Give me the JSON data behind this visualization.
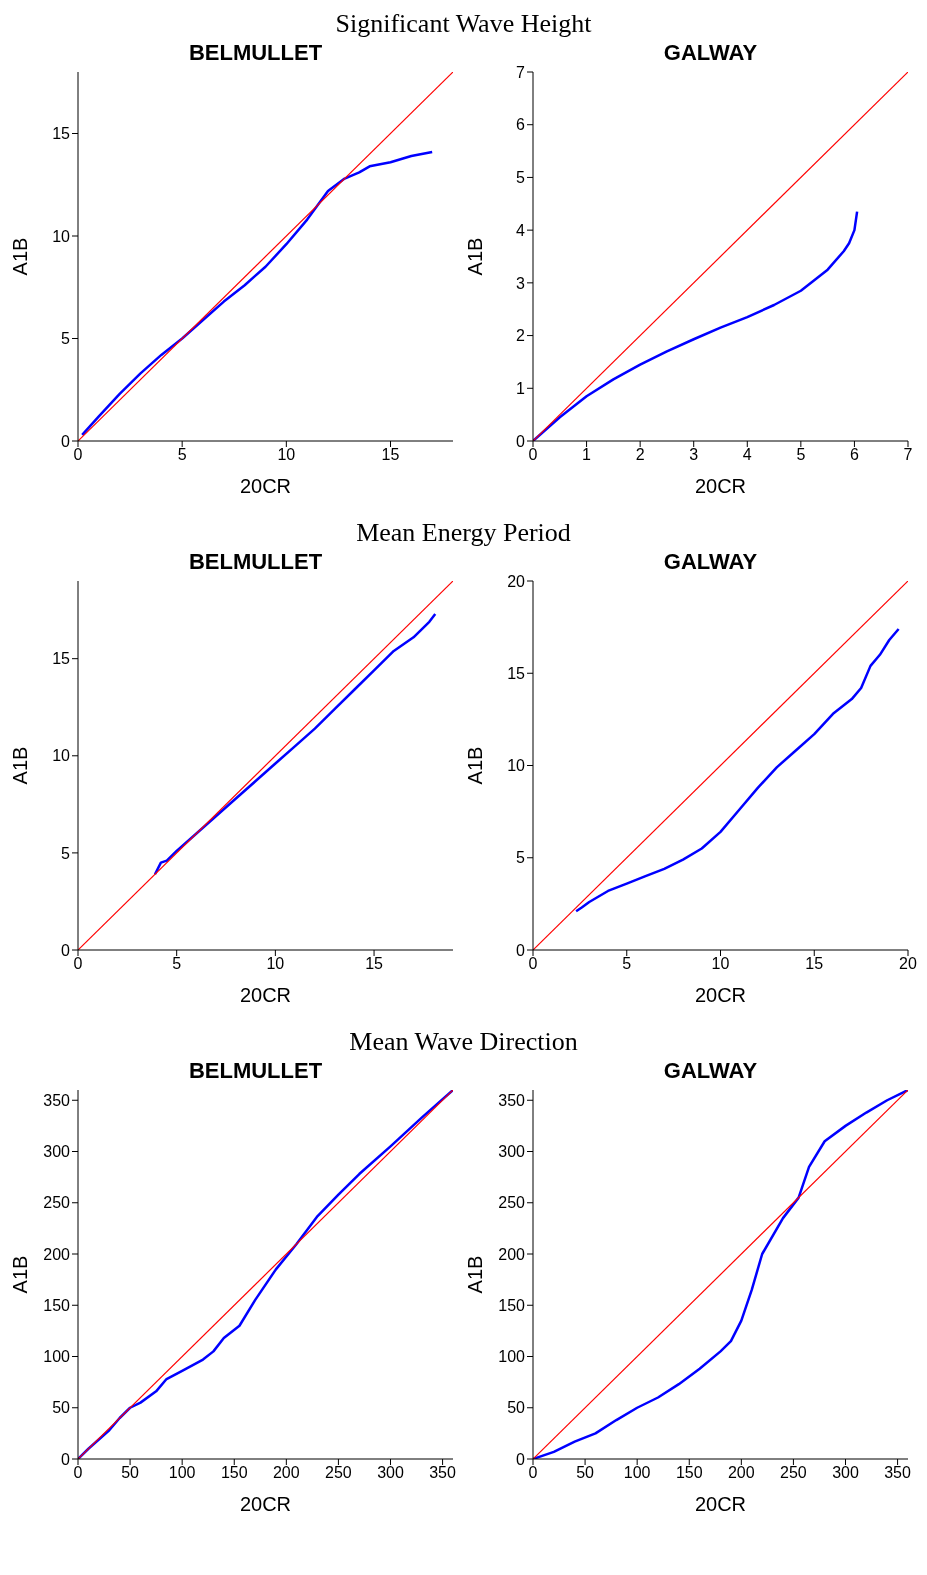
{
  "chart_data": [
    {
      "type": "line",
      "title": "BELMULLET",
      "annotations": [
        "Significant Wave Height"
      ],
      "xlabel": "20CR",
      "ylabel": "A1B",
      "xlim": [
        0,
        18
      ],
      "ylim": [
        0,
        18
      ],
      "xticks": [
        0,
        5,
        10,
        15
      ],
      "yticks": [
        0,
        5,
        10,
        15
      ],
      "grid": false,
      "legend": false,
      "marker": "none",
      "line_style": "solid",
      "series": [
        {
          "color": "#0000ff",
          "x": [
            0.2,
            1,
            2,
            3,
            4,
            5,
            6,
            7,
            8,
            9,
            10,
            11,
            12,
            12.8,
            13.5,
            14,
            15,
            16,
            17
          ],
          "values": [
            0.3,
            1.2,
            2.3,
            3.3,
            4.2,
            5.0,
            5.9,
            6.8,
            7.6,
            8.5,
            9.6,
            10.8,
            12.2,
            12.8,
            13.1,
            13.4,
            13.6,
            13.9,
            14.1
          ]
        },
        {
          "color": "#ff0000",
          "x": [
            0,
            18
          ],
          "values": [
            0,
            18
          ]
        }
      ]
    },
    {
      "type": "line",
      "title": "GALWAY",
      "xlabel": "20CR",
      "ylabel": "A1B",
      "xlim": [
        0,
        7
      ],
      "ylim": [
        0,
        7
      ],
      "xticks": [
        0,
        1,
        2,
        3,
        4,
        5,
        6,
        7
      ],
      "yticks": [
        0,
        1,
        2,
        3,
        4,
        5,
        6,
        7
      ],
      "grid": false,
      "legend": false,
      "marker": "none",
      "line_style": "solid",
      "series": [
        {
          "color": "#0000ff",
          "x": [
            0,
            0.5,
            1,
            1.5,
            2,
            2.5,
            3,
            3.5,
            4,
            4.5,
            5,
            5.5,
            5.8,
            5.9,
            6,
            6.05
          ],
          "values": [
            0,
            0.45,
            0.85,
            1.17,
            1.45,
            1.7,
            1.93,
            2.15,
            2.35,
            2.58,
            2.85,
            3.25,
            3.6,
            3.75,
            4.0,
            4.35
          ]
        },
        {
          "color": "#ff0000",
          "x": [
            0,
            7
          ],
          "values": [
            0,
            7
          ]
        }
      ]
    },
    {
      "type": "line",
      "title": "BELMULLET",
      "annotations": [
        "Mean Energy Period"
      ],
      "xlabel": "20CR",
      "ylabel": "A1B",
      "xlim": [
        0,
        19
      ],
      "ylim": [
        0,
        19
      ],
      "xticks": [
        0,
        5,
        10,
        15
      ],
      "yticks": [
        0,
        5,
        10,
        15
      ],
      "grid": false,
      "legend": false,
      "marker": "none",
      "line_style": "solid",
      "series": [
        {
          "color": "#0000ff",
          "x": [
            3.9,
            4.2,
            4.5,
            5,
            6,
            7,
            8,
            9,
            10,
            11,
            12,
            13,
            14,
            15,
            16,
            17,
            17.8,
            18.1
          ],
          "values": [
            3.9,
            4.5,
            4.6,
            5.1,
            6.0,
            6.9,
            7.8,
            8.7,
            9.6,
            10.5,
            11.4,
            12.4,
            13.4,
            14.4,
            15.4,
            16.1,
            16.9,
            17.3
          ]
        },
        {
          "color": "#ff0000",
          "x": [
            0,
            19
          ],
          "values": [
            0,
            19
          ]
        }
      ]
    },
    {
      "type": "line",
      "title": "GALWAY",
      "xlabel": "20CR",
      "ylabel": "A1B",
      "xlim": [
        0,
        20
      ],
      "ylim": [
        0,
        20
      ],
      "xticks": [
        0,
        5,
        10,
        15,
        20
      ],
      "yticks": [
        0,
        5,
        10,
        15,
        20
      ],
      "grid": false,
      "legend": false,
      "marker": "none",
      "line_style": "solid",
      "series": [
        {
          "color": "#0000ff",
          "x": [
            2.3,
            2.6,
            3,
            4,
            5,
            6,
            7,
            8,
            9,
            10,
            11,
            12,
            13,
            14,
            15,
            16,
            17,
            17.5,
            18,
            18.5,
            19,
            19.5
          ],
          "values": [
            2.1,
            2.3,
            2.6,
            3.2,
            3.6,
            4.0,
            4.4,
            4.9,
            5.5,
            6.4,
            7.6,
            8.8,
            9.9,
            10.8,
            11.7,
            12.8,
            13.6,
            14.2,
            15.4,
            16.0,
            16.8,
            17.4
          ]
        },
        {
          "color": "#ff0000",
          "x": [
            0,
            20
          ],
          "values": [
            0,
            20
          ]
        }
      ]
    },
    {
      "type": "line",
      "title": "BELMULLET",
      "annotations": [
        "Mean Wave Direction"
      ],
      "xlabel": "20CR",
      "ylabel": "A1B",
      "xlim": [
        0,
        360
      ],
      "ylim": [
        0,
        360
      ],
      "xticks": [
        0,
        50,
        100,
        150,
        200,
        250,
        300,
        350
      ],
      "yticks": [
        0,
        50,
        100,
        150,
        200,
        250,
        300,
        350
      ],
      "grid": false,
      "legend": false,
      "marker": "none",
      "line_style": "solid",
      "series": [
        {
          "color": "#0000ff",
          "x": [
            0,
            10,
            30,
            40,
            50,
            60,
            75,
            85,
            100,
            120,
            130,
            140,
            155,
            170,
            190,
            210,
            230,
            250,
            270,
            300,
            330,
            360
          ],
          "values": [
            0,
            10,
            28,
            40,
            50,
            55,
            66,
            78,
            86,
            97,
            105,
            118,
            130,
            155,
            185,
            210,
            237,
            258,
            278,
            305,
            333,
            360
          ]
        },
        {
          "color": "#ff0000",
          "x": [
            0,
            360
          ],
          "values": [
            0,
            360
          ]
        }
      ]
    },
    {
      "type": "line",
      "title": "GALWAY",
      "xlabel": "20CR",
      "ylabel": "A1B",
      "xlim": [
        0,
        360
      ],
      "ylim": [
        0,
        360
      ],
      "xticks": [
        0,
        50,
        100,
        150,
        200,
        250,
        300,
        350
      ],
      "yticks": [
        0,
        50,
        100,
        150,
        200,
        250,
        300,
        350
      ],
      "grid": false,
      "legend": false,
      "marker": "none",
      "line_style": "solid",
      "series": [
        {
          "color": "#0000ff",
          "x": [
            0,
            20,
            40,
            60,
            80,
            100,
            120,
            140,
            160,
            180,
            190,
            200,
            210,
            220,
            240,
            255,
            265,
            280,
            300,
            320,
            340,
            360
          ],
          "values": [
            0,
            7,
            17,
            25,
            38,
            50,
            60,
            73,
            88,
            105,
            115,
            135,
            165,
            200,
            235,
            255,
            285,
            310,
            325,
            338,
            350,
            360
          ]
        },
        {
          "color": "#ff0000",
          "x": [
            0,
            360
          ],
          "values": [
            0,
            360
          ]
        }
      ]
    }
  ]
}
